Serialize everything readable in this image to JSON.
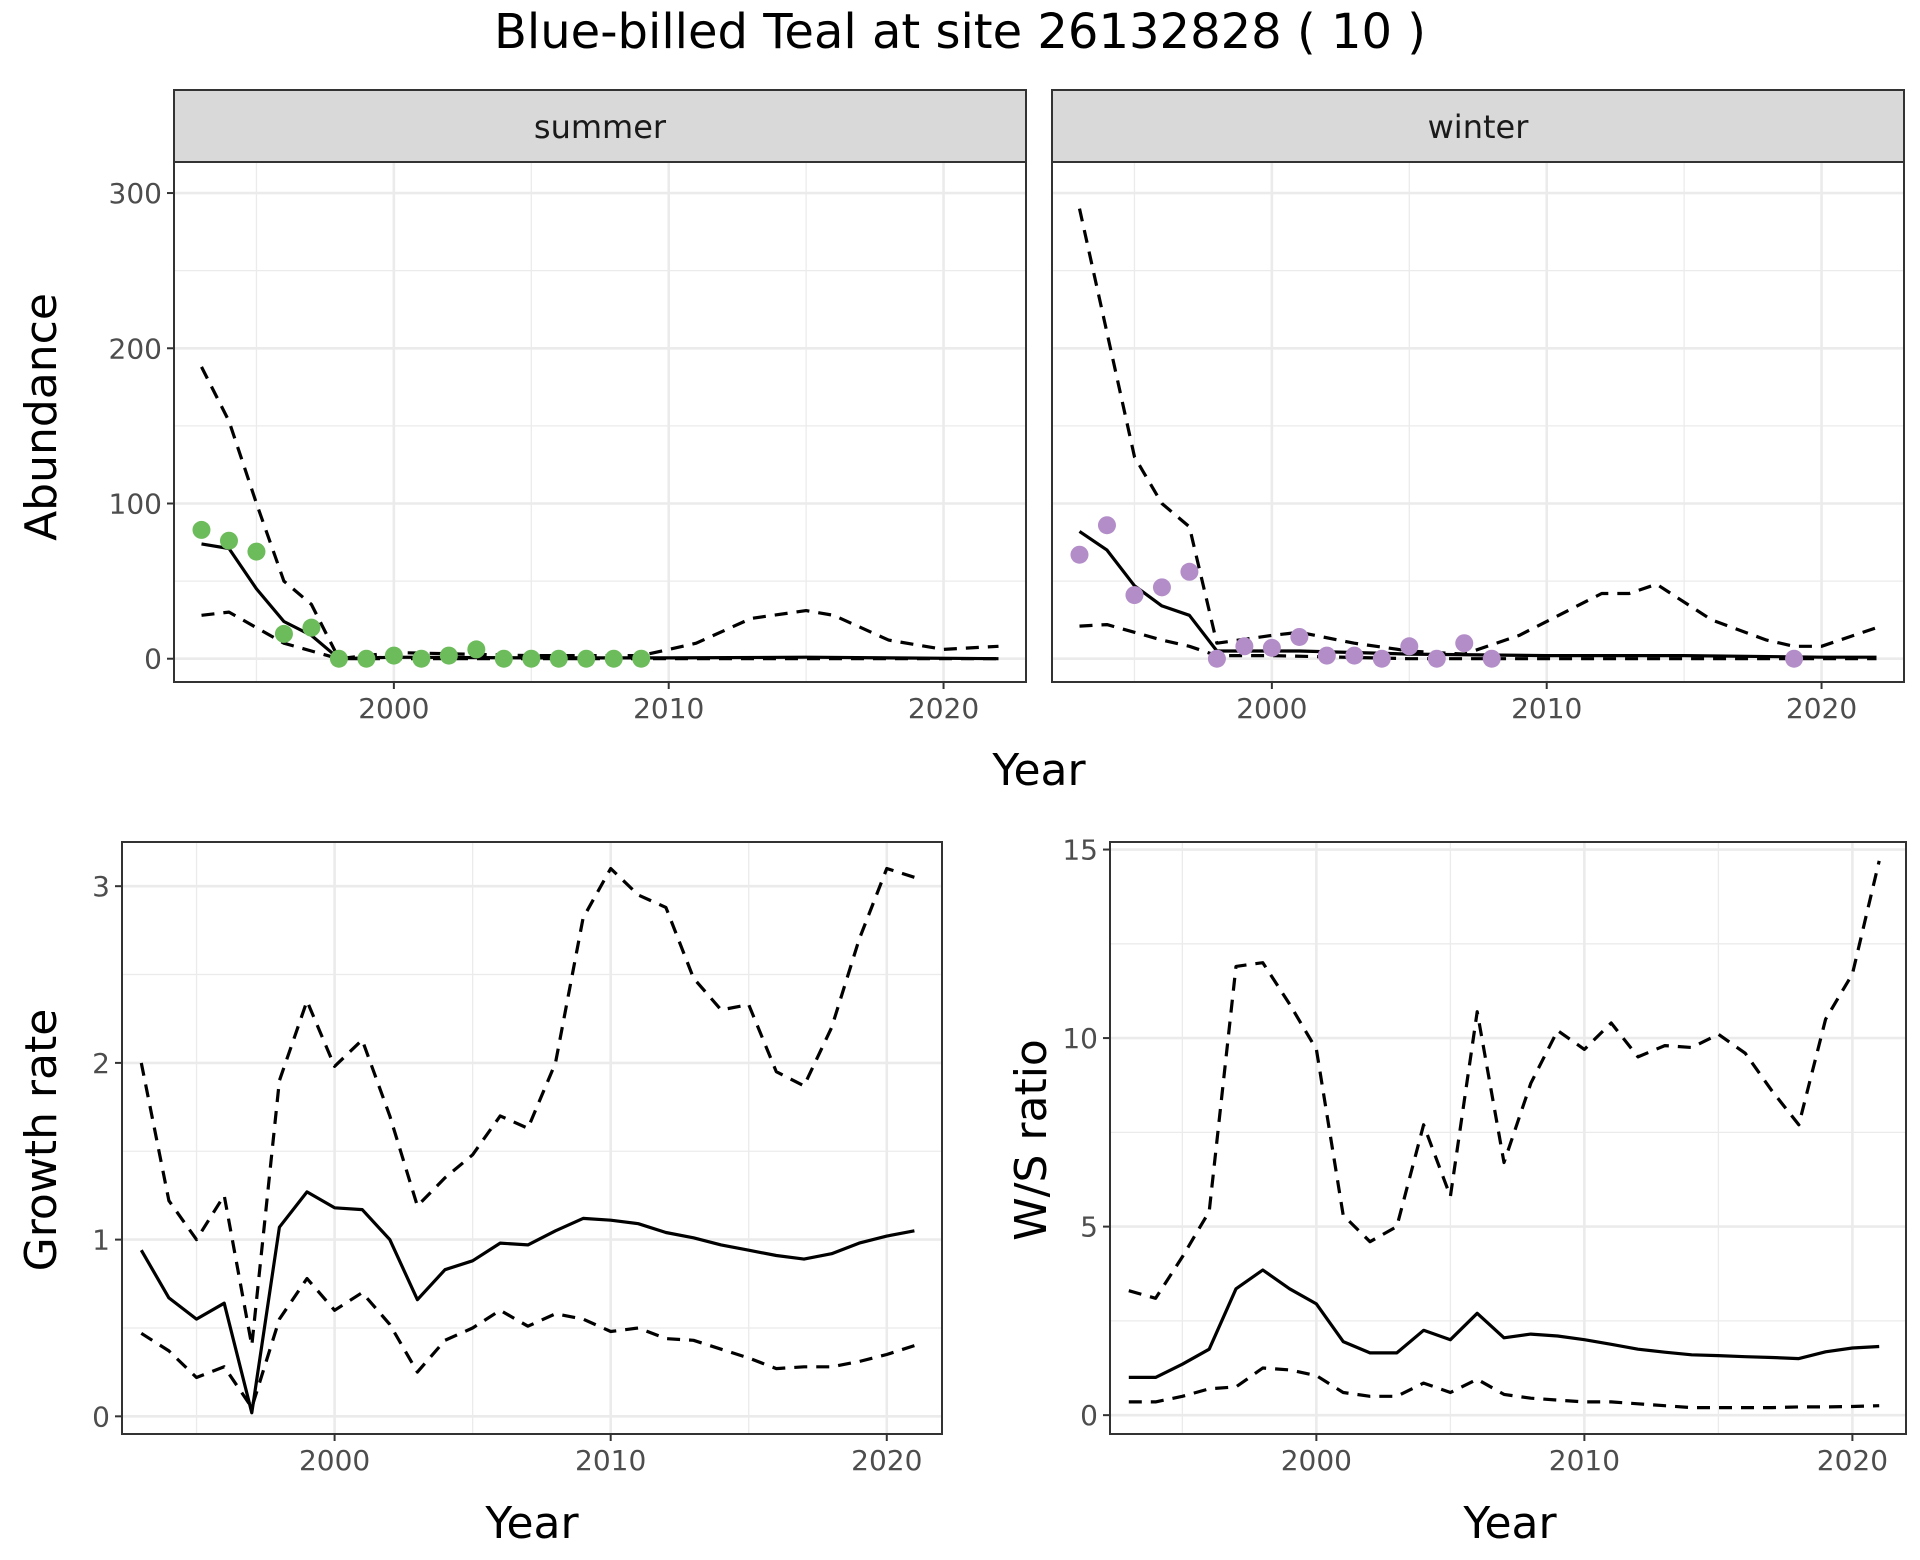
{
  "title": "Blue-billed Teal at site 26132828 ( 10 )",
  "colors": {
    "summer_points": "#6dbc5c",
    "winter_points": "#b38dc8",
    "line": "#000000",
    "grid": "#ebebeb"
  },
  "chart_data": [
    {
      "id": "abundance",
      "type": "scatter",
      "facets": [
        "summer",
        "winter"
      ],
      "xlabel": "Year",
      "ylabel": "Abundance",
      "xlim": [
        1992,
        2023
      ],
      "ylim": [
        -15,
        320
      ],
      "xticks": [
        2000,
        2010,
        2020
      ],
      "yticks": [
        0,
        100,
        200,
        300
      ],
      "panels": [
        {
          "facet": "summer",
          "point_color": "#6dbc5c",
          "observed": {
            "x": [
              1993,
              1994,
              1995,
              1996,
              1997,
              1998,
              1999,
              2000,
              2001,
              2002,
              2003,
              2004,
              2005,
              2006,
              2007,
              2008,
              2009
            ],
            "y": [
              83,
              76,
              69,
              16,
              20,
              0,
              0,
              2,
              0,
              2,
              6,
              0,
              0,
              0,
              0,
              0,
              0
            ]
          },
          "series": [
            {
              "style": "solid",
              "x": [
                1993,
                1994,
                1995,
                1996,
                1997,
                1998,
                2000,
                2005,
                2010,
                2015,
                2022
              ],
              "y": [
                74,
                71,
                45,
                24,
                15,
                0,
                1,
                0.5,
                0.5,
                1,
                0
              ]
            },
            {
              "style": "dashed",
              "x": [
                1993,
                1994,
                1995,
                1996,
                1997,
                1998,
                2000,
                2005,
                2009,
                2011,
                2013,
                2015,
                2016,
                2018,
                2020,
                2022
              ],
              "y": [
                188,
                153,
                100,
                50,
                35,
                0,
                4,
                2,
                2,
                10,
                26,
                31,
                28,
                12,
                6,
                8
              ]
            },
            {
              "style": "dashed",
              "x": [
                1993,
                1994,
                1995,
                1996,
                1997,
                1998,
                2000,
                2005,
                2010,
                2015,
                2022
              ],
              "y": [
                28,
                30,
                20,
                10,
                5,
                0,
                0,
                0,
                0,
                0,
                0
              ]
            }
          ]
        },
        {
          "facet": "winter",
          "point_color": "#b38dc8",
          "observed": {
            "x": [
              1993,
              1994,
              1995,
              1996,
              1997,
              1998,
              1999,
              2000,
              2001,
              2002,
              2003,
              2004,
              2005,
              2006,
              2007,
              2008,
              2019
            ],
            "y": [
              67,
              86,
              41,
              46,
              56,
              0,
              8,
              7,
              14,
              2,
              2,
              0,
              8,
              0,
              10,
              0,
              0
            ]
          },
          "series": [
            {
              "style": "solid",
              "x": [
                1993,
                1994,
                1995,
                1996,
                1997,
                1998,
                2000,
                2001,
                2005,
                2010,
                2015,
                2020,
                2022
              ],
              "y": [
                82,
                70,
                47,
                34,
                28,
                5,
                5,
                5,
                3,
                2,
                2,
                1,
                1
              ]
            },
            {
              "style": "dashed",
              "x": [
                1993,
                1994,
                1995,
                1996,
                1997,
                1998,
                2000,
                2001,
                2003,
                2005,
                2007,
                2009,
                2012,
                2013,
                2014,
                2016,
                2018,
                2019,
                2020,
                2022
              ],
              "y": [
                290,
                210,
                130,
                100,
                85,
                10,
                15,
                17,
                10,
                5,
                3,
                15,
                42,
                42,
                48,
                25,
                12,
                8,
                8,
                20
              ]
            },
            {
              "style": "dashed",
              "x": [
                1993,
                1994,
                1995,
                1996,
                1997,
                1998,
                2000,
                2005,
                2010,
                2015,
                2022
              ],
              "y": [
                21,
                22,
                17,
                12,
                8,
                2,
                2,
                0,
                0,
                0,
                0
              ]
            }
          ]
        }
      ]
    },
    {
      "id": "growth",
      "type": "line",
      "xlabel": "Year",
      "ylabel": "Growth rate",
      "xlim": [
        1992.3,
        2022
      ],
      "ylim": [
        -0.1,
        3.25
      ],
      "xticks": [
        2000,
        2010,
        2020
      ],
      "yticks": [
        0,
        1,
        2,
        3
      ],
      "series": [
        {
          "style": "solid",
          "x": [
            1993,
            1994,
            1995,
            1996,
            1997,
            1998,
            1999,
            2000,
            2001,
            2002,
            2003,
            2004,
            2005,
            2006,
            2007,
            2008,
            2009,
            2010,
            2011,
            2012,
            2013,
            2014,
            2015,
            2016,
            2017,
            2018,
            2019,
            2020,
            2021
          ],
          "y": [
            0.94,
            0.67,
            0.55,
            0.64,
            0.02,
            1.07,
            1.27,
            1.18,
            1.17,
            1.0,
            0.66,
            0.83,
            0.88,
            0.98,
            0.97,
            1.05,
            1.12,
            1.11,
            1.09,
            1.04,
            1.01,
            0.97,
            0.94,
            0.91,
            0.89,
            0.92,
            0.98,
            1.02,
            1.05
          ]
        },
        {
          "style": "dashed",
          "x": [
            1993,
            1994,
            1995,
            1996,
            1997,
            1998,
            1999,
            2000,
            2001,
            2002,
            2003,
            2004,
            2005,
            2006,
            2007,
            2008,
            2009,
            2010,
            2011,
            2012,
            2013,
            2014,
            2015,
            2016,
            2017,
            2018,
            2019,
            2020,
            2021
          ],
          "y": [
            2.0,
            1.22,
            1.0,
            1.25,
            0.4,
            1.9,
            2.35,
            1.98,
            2.13,
            1.7,
            1.19,
            1.35,
            1.48,
            1.7,
            1.63,
            2.0,
            2.82,
            3.1,
            2.95,
            2.88,
            2.48,
            2.3,
            2.33,
            1.95,
            1.87,
            2.2,
            2.7,
            3.1,
            3.05
          ]
        },
        {
          "style": "dashed",
          "x": [
            1993,
            1994,
            1995,
            1996,
            1997,
            1998,
            1999,
            2000,
            2001,
            2002,
            2003,
            2004,
            2005,
            2006,
            2007,
            2008,
            2009,
            2010,
            2011,
            2012,
            2013,
            2014,
            2015,
            2016,
            2017,
            2018,
            2019,
            2020,
            2021
          ],
          "y": [
            0.47,
            0.37,
            0.22,
            0.28,
            0.05,
            0.55,
            0.78,
            0.6,
            0.7,
            0.52,
            0.25,
            0.43,
            0.5,
            0.6,
            0.51,
            0.58,
            0.55,
            0.48,
            0.5,
            0.44,
            0.43,
            0.38,
            0.33,
            0.27,
            0.28,
            0.28,
            0.31,
            0.35,
            0.4
          ]
        }
      ]
    },
    {
      "id": "ratio",
      "type": "line",
      "xlabel": "Year",
      "ylabel": "W/S ratio",
      "xlim": [
        1992.3,
        2022
      ],
      "ylim": [
        -0.5,
        15.2
      ],
      "xticks": [
        2000,
        2010,
        2020
      ],
      "yticks": [
        0,
        5,
        10,
        15
      ],
      "series": [
        {
          "style": "solid",
          "x": [
            1993,
            1994,
            1995,
            1996,
            1997,
            1998,
            1999,
            2000,
            2001,
            2002,
            2003,
            2004,
            2005,
            2006,
            2007,
            2008,
            2009,
            2010,
            2011,
            2012,
            2013,
            2014,
            2015,
            2016,
            2017,
            2018,
            2019,
            2020,
            2021
          ],
          "y": [
            1.0,
            1.0,
            1.35,
            1.75,
            3.35,
            3.85,
            3.35,
            2.95,
            1.95,
            1.65,
            1.65,
            2.25,
            2.0,
            2.7,
            2.05,
            2.15,
            2.1,
            2.0,
            1.88,
            1.75,
            1.67,
            1.6,
            1.58,
            1.55,
            1.53,
            1.5,
            1.68,
            1.78,
            1.82
          ]
        },
        {
          "style": "dashed",
          "x": [
            1993,
            1994,
            1995,
            1996,
            1997,
            1998,
            1999,
            2000,
            2001,
            2002,
            2003,
            2004,
            2005,
            2006,
            2007,
            2008,
            2009,
            2010,
            2011,
            2012,
            2013,
            2014,
            2015,
            2016,
            2017,
            2018,
            2019,
            2020,
            2021
          ],
          "y": [
            3.3,
            3.1,
            4.2,
            5.4,
            11.9,
            12.0,
            10.9,
            9.7,
            5.3,
            4.6,
            5.0,
            7.7,
            5.8,
            10.7,
            6.7,
            8.8,
            10.2,
            9.7,
            10.4,
            9.5,
            9.8,
            9.75,
            10.1,
            9.6,
            8.6,
            7.7,
            10.5,
            11.7,
            14.7
          ]
        },
        {
          "style": "dashed",
          "x": [
            1993,
            1994,
            1995,
            1996,
            1997,
            1998,
            1999,
            2000,
            2001,
            2002,
            2003,
            2004,
            2005,
            2006,
            2007,
            2008,
            2009,
            2010,
            2011,
            2012,
            2013,
            2014,
            2015,
            2016,
            2017,
            2018,
            2019,
            2020,
            2021
          ],
          "y": [
            0.35,
            0.35,
            0.5,
            0.7,
            0.75,
            1.25,
            1.2,
            1.05,
            0.6,
            0.5,
            0.5,
            0.85,
            0.6,
            0.95,
            0.55,
            0.45,
            0.4,
            0.35,
            0.35,
            0.3,
            0.25,
            0.2,
            0.2,
            0.2,
            0.2,
            0.22,
            0.22,
            0.23,
            0.25
          ]
        }
      ]
    }
  ]
}
